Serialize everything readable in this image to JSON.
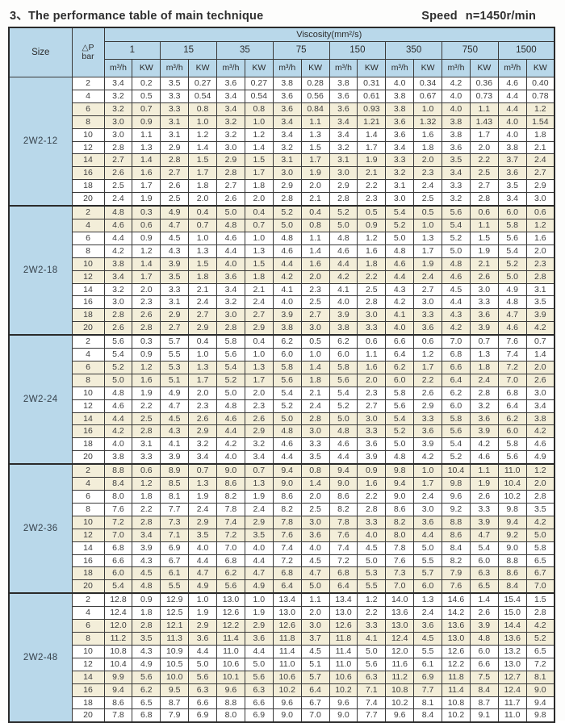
{
  "header": {
    "title": "3、The performance table of main technique",
    "speed_word": "Speed",
    "speed_value": "n=1450r/min"
  },
  "colors": {
    "header_blue": "#b9d8ea",
    "stripe_cream": "#f3eed9",
    "border_dark": "#2a2a2a"
  },
  "table": {
    "corner_label": "Size",
    "dp_label": "△P",
    "dp_unit": "bar",
    "viscosity_label": "Viscosity(mm²/s)",
    "viscosities": [
      "1",
      "15",
      "35",
      "75",
      "150",
      "350",
      "750",
      "1500"
    ],
    "flow_unit": "m³/h",
    "power_unit": "KW",
    "groups": [
      {
        "size": "2W2-12",
        "rows": [
          [
            "2",
            "3.4",
            "0.2",
            "3.5",
            "0.27",
            "3.6",
            "0.27",
            "3.8",
            "0.28",
            "3.8",
            "0.31",
            "4.0",
            "0.34",
            "4.2",
            "0.36",
            "4.6",
            "0.40"
          ],
          [
            "4",
            "3.2",
            "0.5",
            "3.3",
            "0.54",
            "3.4",
            "0.54",
            "3.6",
            "0.56",
            "3.6",
            "0.61",
            "3.8",
            "0.67",
            "4.0",
            "0.73",
            "4.4",
            "0.78"
          ],
          [
            "6",
            "3.2",
            "0.7",
            "3.3",
            "0.8",
            "3.4",
            "0.8",
            "3.6",
            "0.84",
            "3.6",
            "0.93",
            "3.8",
            "1.0",
            "4.0",
            "1.1",
            "4.4",
            "1.2"
          ],
          [
            "8",
            "3.0",
            "0.9",
            "3.1",
            "1.0",
            "3.2",
            "1.0",
            "3.4",
            "1.1",
            "3.4",
            "1.21",
            "3.6",
            "1.32",
            "3.8",
            "1.43",
            "4.0",
            "1.54"
          ],
          [
            "10",
            "3.0",
            "1.1",
            "3.1",
            "1.2",
            "3.2",
            "1.2",
            "3.4",
            "1.3",
            "3.4",
            "1.4",
            "3.6",
            "1.6",
            "3.8",
            "1.7",
            "4.0",
            "1.8"
          ],
          [
            "12",
            "2.8",
            "1.3",
            "2.9",
            "1.4",
            "3.0",
            "1.4",
            "3.2",
            "1.5",
            "3.2",
            "1.7",
            "3.4",
            "1.8",
            "3.6",
            "2.0",
            "3.8",
            "2.1"
          ],
          [
            "14",
            "2.7",
            "1.4",
            "2.8",
            "1.5",
            "2.9",
            "1.5",
            "3.1",
            "1.7",
            "3.1",
            "1.9",
            "3.3",
            "2.0",
            "3.5",
            "2.2",
            "3.7",
            "2.4"
          ],
          [
            "16",
            "2.6",
            "1.6",
            "2.7",
            "1.7",
            "2.8",
            "1.7",
            "3.0",
            "1.9",
            "3.0",
            "2.1",
            "3.2",
            "2.3",
            "3.4",
            "2.5",
            "3.6",
            "2.7"
          ],
          [
            "18",
            "2.5",
            "1.7",
            "2.6",
            "1.8",
            "2.7",
            "1.8",
            "2.9",
            "2.0",
            "2.9",
            "2.2",
            "3.1",
            "2.4",
            "3.3",
            "2.7",
            "3.5",
            "2.9"
          ],
          [
            "20",
            "2.4",
            "1.9",
            "2.5",
            "2.0",
            "2.6",
            "2.0",
            "2.8",
            "2.1",
            "2.8",
            "2.3",
            "3.0",
            "2.5",
            "3.2",
            "2.8",
            "3.4",
            "3.0"
          ]
        ]
      },
      {
        "size": "2W2-18",
        "rows": [
          [
            "2",
            "4.8",
            "0.3",
            "4.9",
            "0.4",
            "5.0",
            "0.4",
            "5.2",
            "0.4",
            "5.2",
            "0.5",
            "5.4",
            "0.5",
            "5.6",
            "0.6",
            "6.0",
            "0.6"
          ],
          [
            "4",
            "4.6",
            "0.6",
            "4.7",
            "0.7",
            "4.8",
            "0.7",
            "5.0",
            "0.8",
            "5.0",
            "0.9",
            "5.2",
            "1.0",
            "5.4",
            "1.1",
            "5.8",
            "1.2"
          ],
          [
            "6",
            "4.4",
            "0.9",
            "4.5",
            "1.0",
            "4.6",
            "1.0",
            "4.8",
            "1.1",
            "4.8",
            "1.2",
            "5.0",
            "1.3",
            "5.2",
            "1.5",
            "5.6",
            "1.6"
          ],
          [
            "8",
            "4.2",
            "1.2",
            "4.3",
            "1.3",
            "4.4",
            "1.3",
            "4.6",
            "1.4",
            "4.6",
            "1.6",
            "4.8",
            "1.7",
            "5.0",
            "1.9",
            "5.4",
            "2.0"
          ],
          [
            "10",
            "3.8",
            "1.4",
            "3.9",
            "1.5",
            "4.0",
            "1.5",
            "4.4",
            "1.6",
            "4.4",
            "1.8",
            "4.6",
            "1.9",
            "4.8",
            "2.1",
            "5.2",
            "2.3"
          ],
          [
            "12",
            "3.4",
            "1.7",
            "3.5",
            "1.8",
            "3.6",
            "1.8",
            "4.2",
            "2.0",
            "4.2",
            "2.2",
            "4.4",
            "2.4",
            "4.6",
            "2.6",
            "5.0",
            "2.8"
          ],
          [
            "14",
            "3.2",
            "2.0",
            "3.3",
            "2.1",
            "3.4",
            "2.1",
            "4.1",
            "2.3",
            "4.1",
            "2.5",
            "4.3",
            "2.7",
            "4.5",
            "3.0",
            "4.9",
            "3.1"
          ],
          [
            "16",
            "3.0",
            "2.3",
            "3.1",
            "2.4",
            "3.2",
            "2.4",
            "4.0",
            "2.5",
            "4.0",
            "2.8",
            "4.2",
            "3.0",
            "4.4",
            "3.3",
            "4.8",
            "3.5"
          ],
          [
            "18",
            "2.8",
            "2.6",
            "2.9",
            "2.7",
            "3.0",
            "2.7",
            "3.9",
            "2.7",
            "3.9",
            "3.0",
            "4.1",
            "3.3",
            "4.3",
            "3.6",
            "4.7",
            "3.9"
          ],
          [
            "20",
            "2.6",
            "2.8",
            "2.7",
            "2.9",
            "2.8",
            "2.9",
            "3.8",
            "3.0",
            "3.8",
            "3.3",
            "4.0",
            "3.6",
            "4.2",
            "3.9",
            "4.6",
            "4.2"
          ]
        ]
      },
      {
        "size": "2W2-24",
        "rows": [
          [
            "2",
            "5.6",
            "0.3",
            "5.7",
            "0.4",
            "5.8",
            "0.4",
            "6.2",
            "0.5",
            "6.2",
            "0.6",
            "6.6",
            "0.6",
            "7.0",
            "0.7",
            "7.6",
            "0.7"
          ],
          [
            "4",
            "5.4",
            "0.9",
            "5.5",
            "1.0",
            "5.6",
            "1.0",
            "6.0",
            "1.0",
            "6.0",
            "1.1",
            "6.4",
            "1.2",
            "6.8",
            "1.3",
            "7.4",
            "1.4"
          ],
          [
            "6",
            "5.2",
            "1.2",
            "5.3",
            "1.3",
            "5.4",
            "1.3",
            "5.8",
            "1.4",
            "5.8",
            "1.6",
            "6.2",
            "1.7",
            "6.6",
            "1.8",
            "7.2",
            "2.0"
          ],
          [
            "8",
            "5.0",
            "1.6",
            "5.1",
            "1.7",
            "5.2",
            "1.7",
            "5.6",
            "1.8",
            "5.6",
            "2.0",
            "6.0",
            "2.2",
            "6.4",
            "2.4",
            "7.0",
            "2.6"
          ],
          [
            "10",
            "4.8",
            "1.9",
            "4.9",
            "2.0",
            "5.0",
            "2.0",
            "5.4",
            "2.1",
            "5.4",
            "2.3",
            "5.8",
            "2.6",
            "6.2",
            "2.8",
            "6.8",
            "3.0"
          ],
          [
            "12",
            "4.6",
            "2.2",
            "4.7",
            "2.3",
            "4.8",
            "2.3",
            "5.2",
            "2.4",
            "5.2",
            "2.7",
            "5.6",
            "2.9",
            "6.0",
            "3.2",
            "6.4",
            "3.4"
          ],
          [
            "14",
            "4.4",
            "2.5",
            "4.5",
            "2.6",
            "4.6",
            "2.6",
            "5.0",
            "2.8",
            "5.0",
            "3.0",
            "5.4",
            "3.3",
            "5.8",
            "3.6",
            "6.2",
            "3.8"
          ],
          [
            "16",
            "4.2",
            "2.8",
            "4.3",
            "2.9",
            "4.4",
            "2.9",
            "4.8",
            "3.0",
            "4.8",
            "3.3",
            "5.2",
            "3.6",
            "5.6",
            "3.9",
            "6.0",
            "4.2"
          ],
          [
            "18",
            "4.0",
            "3.1",
            "4.1",
            "3.2",
            "4.2",
            "3.2",
            "4.6",
            "3.3",
            "4.6",
            "3.6",
            "5.0",
            "3.9",
            "5.4",
            "4.2",
            "5.8",
            "4.6"
          ],
          [
            "20",
            "3.8",
            "3.3",
            "3.9",
            "3.4",
            "4.0",
            "3.4",
            "4.4",
            "3.5",
            "4.4",
            "3.9",
            "4.8",
            "4.2",
            "5.2",
            "4.6",
            "5.6",
            "4.9"
          ]
        ]
      },
      {
        "size": "2W2-36",
        "rows": [
          [
            "2",
            "8.8",
            "0.6",
            "8.9",
            "0.7",
            "9.0",
            "0.7",
            "9.4",
            "0.8",
            "9.4",
            "0.9",
            "9.8",
            "1.0",
            "10.4",
            "1.1",
            "11.0",
            "1.2"
          ],
          [
            "4",
            "8.4",
            "1.2",
            "8.5",
            "1.3",
            "8.6",
            "1.3",
            "9.0",
            "1.4",
            "9.0",
            "1.6",
            "9.4",
            "1.7",
            "9.8",
            "1.9",
            "10.4",
            "2.0"
          ],
          [
            "6",
            "8.0",
            "1.8",
            "8.1",
            "1.9",
            "8.2",
            "1.9",
            "8.6",
            "2.0",
            "8.6",
            "2.2",
            "9.0",
            "2.4",
            "9.6",
            "2.6",
            "10.2",
            "2.8"
          ],
          [
            "8",
            "7.6",
            "2.2",
            "7.7",
            "2.4",
            "7.8",
            "2.4",
            "8.2",
            "2.5",
            "8.2",
            "2.8",
            "8.6",
            "3.0",
            "9.2",
            "3.3",
            "9.8",
            "3.5"
          ],
          [
            "10",
            "7.2",
            "2.8",
            "7.3",
            "2.9",
            "7.4",
            "2.9",
            "7.8",
            "3.0",
            "7.8",
            "3.3",
            "8.2",
            "3.6",
            "8.8",
            "3.9",
            "9.4",
            "4.2"
          ],
          [
            "12",
            "7.0",
            "3.4",
            "7.1",
            "3.5",
            "7.2",
            "3.5",
            "7.6",
            "3.6",
            "7.6",
            "4.0",
            "8.0",
            "4.4",
            "8.6",
            "4.7",
            "9.2",
            "5.0"
          ],
          [
            "14",
            "6.8",
            "3.9",
            "6.9",
            "4.0",
            "7.0",
            "4.0",
            "7.4",
            "4.0",
            "7.4",
            "4.5",
            "7.8",
            "5.0",
            "8.4",
            "5.4",
            "9.0",
            "5.8"
          ],
          [
            "16",
            "6.6",
            "4.3",
            "6.7",
            "4.4",
            "6.8",
            "4.4",
            "7.2",
            "4.5",
            "7.2",
            "5.0",
            "7.6",
            "5.5",
            "8.2",
            "6.0",
            "8.8",
            "6.5"
          ],
          [
            "18",
            "6.0",
            "4.5",
            "6.1",
            "4.7",
            "6.2",
            "4.7",
            "6.8",
            "4.7",
            "6.8",
            "5.3",
            "7.3",
            "5.7",
            "7.9",
            "6.3",
            "8.6",
            "6.7"
          ],
          [
            "20",
            "5.4",
            "4.8",
            "5.5",
            "4.9",
            "5.6",
            "4.9",
            "6.4",
            "5.0",
            "6.4",
            "5.5",
            "7.0",
            "6.0",
            "7.6",
            "6.5",
            "8.4",
            "7.0"
          ]
        ]
      },
      {
        "size": "2W2-48",
        "rows": [
          [
            "2",
            "12.8",
            "0.9",
            "12.9",
            "1.0",
            "13.0",
            "1.0",
            "13.4",
            "1.1",
            "13.4",
            "1.2",
            "14.0",
            "1.3",
            "14.6",
            "1.4",
            "15.4",
            "1.5"
          ],
          [
            "4",
            "12.4",
            "1.8",
            "12.5",
            "1.9",
            "12.6",
            "1.9",
            "13.0",
            "2.0",
            "13.0",
            "2.2",
            "13.6",
            "2.4",
            "14.2",
            "2.6",
            "15.0",
            "2.8"
          ],
          [
            "6",
            "12.0",
            "2.8",
            "12.1",
            "2.9",
            "12.2",
            "2.9",
            "12.6",
            "3.0",
            "12.6",
            "3.3",
            "13.0",
            "3.6",
            "13.6",
            "3.9",
            "14.4",
            "4.2"
          ],
          [
            "8",
            "11.2",
            "3.5",
            "11.3",
            "3.6",
            "11.4",
            "3.6",
            "11.8",
            "3.7",
            "11.8",
            "4.1",
            "12.4",
            "4.5",
            "13.0",
            "4.8",
            "13.6",
            "5.2"
          ],
          [
            "10",
            "10.8",
            "4.3",
            "10.9",
            "4.4",
            "11.0",
            "4.4",
            "11.4",
            "4.5",
            "11.4",
            "5.0",
            "12.0",
            "5.5",
            "12.6",
            "6.0",
            "13.2",
            "6.5"
          ],
          [
            "12",
            "10.4",
            "4.9",
            "10.5",
            "5.0",
            "10.6",
            "5.0",
            "11.0",
            "5.1",
            "11.0",
            "5.6",
            "11.6",
            "6.1",
            "12.2",
            "6.6",
            "13.0",
            "7.2"
          ],
          [
            "14",
            "9.9",
            "5.6",
            "10.0",
            "5.6",
            "10.1",
            "5.6",
            "10.6",
            "5.7",
            "10.6",
            "6.3",
            "11.2",
            "6.9",
            "11.8",
            "7.5",
            "12.7",
            "8.1"
          ],
          [
            "16",
            "9.4",
            "6.2",
            "9.5",
            "6.3",
            "9.6",
            "6.3",
            "10.2",
            "6.4",
            "10.2",
            "7.1",
            "10.8",
            "7.7",
            "11.4",
            "8.4",
            "12.4",
            "9.0"
          ],
          [
            "18",
            "8.6",
            "6.5",
            "8.7",
            "6.6",
            "8.8",
            "6.6",
            "9.6",
            "6.7",
            "9.6",
            "7.4",
            "10.2",
            "8.1",
            "10.8",
            "8.7",
            "11.7",
            "9.4"
          ],
          [
            "20",
            "7.8",
            "6.8",
            "7.9",
            "6.9",
            "8.0",
            "6.9",
            "9.0",
            "7.0",
            "9.0",
            "7.7",
            "9.6",
            "8.4",
            "10.2",
            "9.1",
            "11.0",
            "9.8"
          ]
        ]
      }
    ]
  }
}
